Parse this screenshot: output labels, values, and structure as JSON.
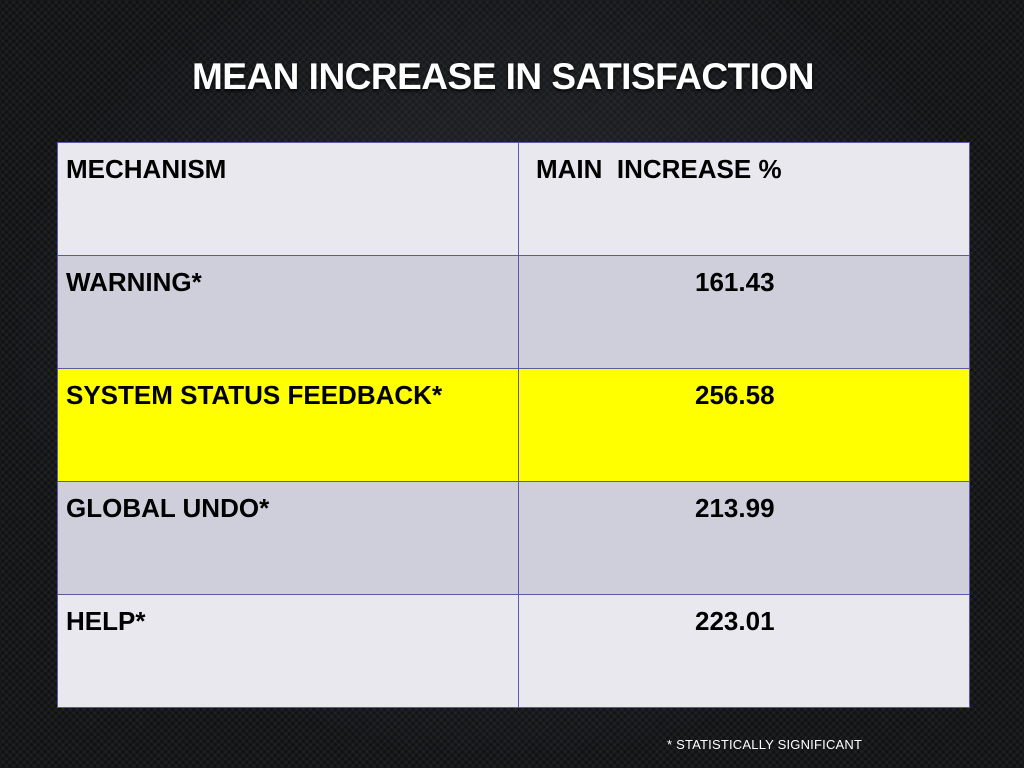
{
  "slide": {
    "title": "MEAN INCREASE IN SATISFACTION",
    "footnote": "* STATISTICALLY SIGNIFICANT"
  },
  "table": {
    "headers": [
      "MECHANISM",
      "MAIN  INCREASE %"
    ],
    "rows": [
      {
        "mechanism": "WARNING*",
        "value": "161.43"
      },
      {
        "mechanism": "SYSTEM STATUS FEEDBACK*",
        "value": "256.58",
        "highlighted": true
      },
      {
        "mechanism": "GLOBAL UNDO*",
        "value": "213.99"
      },
      {
        "mechanism": "HELP*",
        "value": "223.01"
      }
    ]
  },
  "colors": {
    "background": "#101214",
    "title": "#ffffff",
    "row_light": "#e8e8ee",
    "row_mid": "#cfcfdc",
    "row_highlight": "#ffff00",
    "border": "#5a5aa8"
  }
}
